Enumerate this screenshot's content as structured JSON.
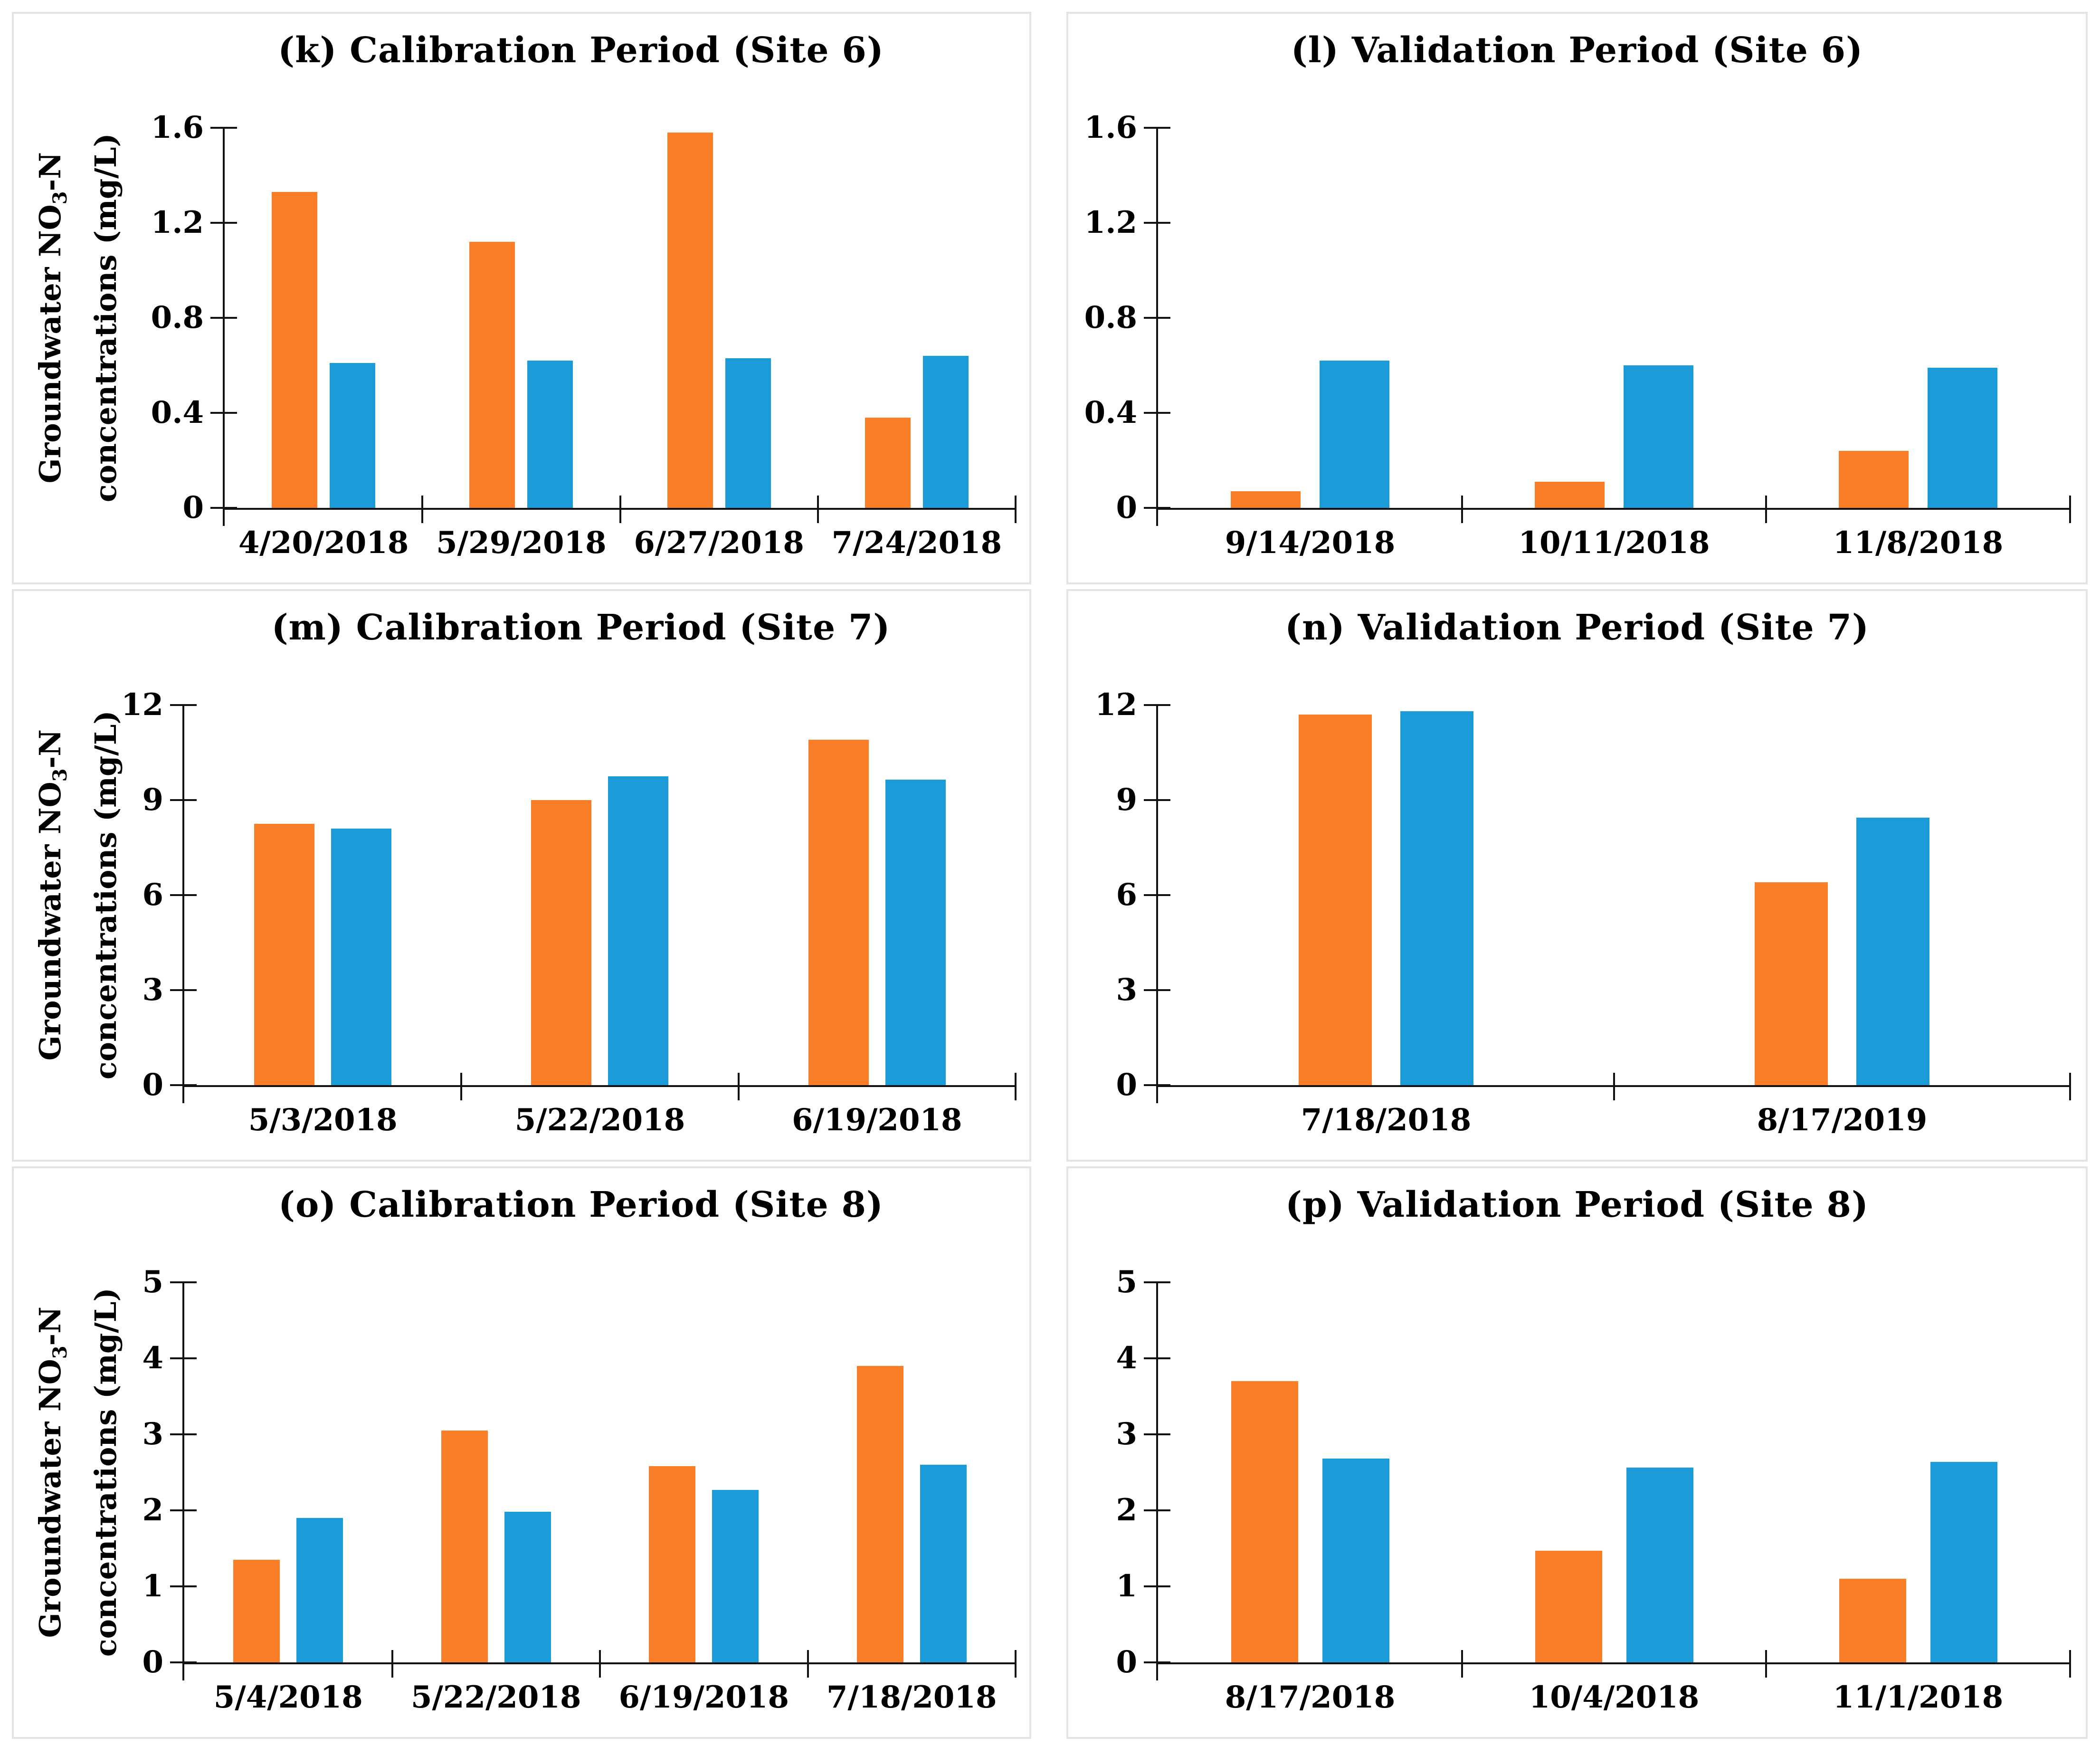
{
  "figure": {
    "colors": {
      "orange": "#F97E27",
      "blue": "#1B9CD8",
      "axis": "#111111",
      "panel_border": "#E3E3E3"
    },
    "ylabel": {
      "pre": "Groundwater NO",
      "sub": "3",
      "post": "-N",
      "line2": "concentrations (mg/L)"
    }
  },
  "chart_data": [
    {
      "id": "k",
      "type": "bar",
      "title": "(k) Calibration Period (Site 6)",
      "categories": [
        "4/20/2018",
        "5/29/2018",
        "6/27/2018",
        "7/24/2018"
      ],
      "series": [
        {
          "name": "orange",
          "color": "#F97E27",
          "values": [
            1.33,
            1.12,
            1.58,
            0.38
          ]
        },
        {
          "name": "blue",
          "color": "#1B9CD8",
          "values": [
            0.61,
            0.62,
            0.63,
            0.64
          ]
        }
      ],
      "ylabel": "Groundwater NO3-N concentrations (mg/L)",
      "ylim": [
        0,
        1.6
      ],
      "yticks": [
        0,
        0.4,
        0.8,
        1.2,
        1.6
      ],
      "ytick_labels": [
        "0",
        "0.4",
        "0.8",
        "1.2",
        "1.6"
      ],
      "grid": false,
      "legend": "none",
      "layout": {
        "axis_left": 440,
        "bar_frac": 0.23,
        "gap_frac": 0.063,
        "title_indent": 250,
        "has_ylabel": true
      }
    },
    {
      "id": "l",
      "type": "bar",
      "title": "(l) Validation Period (Site 6)",
      "categories": [
        "9/14/2018",
        "10/11/2018",
        "11/8/2018"
      ],
      "series": [
        {
          "name": "orange",
          "color": "#F97E27",
          "values": [
            0.07,
            0.11,
            0.24
          ]
        },
        {
          "name": "blue",
          "color": "#1B9CD8",
          "values": [
            0.62,
            0.6,
            0.59
          ]
        }
      ],
      "ylabel": "",
      "ylim": [
        0,
        1.6
      ],
      "yticks": [
        0,
        0.4,
        0.8,
        1.2,
        1.6
      ],
      "ytick_labels": [
        "0",
        "0.4",
        "0.8",
        "1.2",
        "1.6"
      ],
      "grid": false,
      "legend": "none",
      "layout": {
        "axis_left": 185,
        "bar_frac": 0.23,
        "gap_frac": 0.063,
        "title_indent": 0,
        "has_ylabel": false
      }
    },
    {
      "id": "m",
      "type": "bar",
      "title": "(m) Calibration Period (Site 7)",
      "categories": [
        "5/3/2018",
        "5/22/2018",
        "6/19/2018"
      ],
      "series": [
        {
          "name": "orange",
          "color": "#F97E27",
          "values": [
            8.25,
            9.0,
            10.9
          ]
        },
        {
          "name": "blue",
          "color": "#1B9CD8",
          "values": [
            8.1,
            9.75,
            9.65
          ]
        }
      ],
      "ylabel": "Groundwater NO3-N concentrations (mg/L)",
      "ylim": [
        0,
        12
      ],
      "yticks": [
        0,
        3,
        6,
        9,
        12
      ],
      "ytick_labels": [
        "0",
        "3",
        "6",
        "9",
        "12"
      ],
      "grid": false,
      "legend": "none",
      "layout": {
        "axis_left": 355,
        "bar_frac": 0.217,
        "gap_frac": 0.06,
        "title_indent": 250,
        "has_ylabel": true
      }
    },
    {
      "id": "n",
      "type": "bar",
      "title": "(n) Validation Period (Site 7)",
      "categories": [
        "7/18/2018",
        "8/17/2019"
      ],
      "series": [
        {
          "name": "orange",
          "color": "#F97E27",
          "values": [
            11.7,
            6.4
          ]
        },
        {
          "name": "blue",
          "color": "#1B9CD8",
          "values": [
            11.8,
            8.45
          ]
        }
      ],
      "ylabel": "",
      "ylim": [
        0,
        12
      ],
      "yticks": [
        0,
        3,
        6,
        9,
        12
      ],
      "ytick_labels": [
        "0",
        "3",
        "6",
        "9",
        "12"
      ],
      "grid": false,
      "legend": "none",
      "layout": {
        "axis_left": 185,
        "bar_frac": 0.16,
        "gap_frac": 0.062,
        "title_indent": 0,
        "has_ylabel": false
      }
    },
    {
      "id": "o",
      "type": "bar",
      "title": "(o) Calibration Period (Site 8)",
      "categories": [
        "5/4/2018",
        "5/22/2018",
        "6/19/2018",
        "7/18/2018"
      ],
      "series": [
        {
          "name": "orange",
          "color": "#F97E27",
          "values": [
            1.35,
            3.05,
            2.58,
            3.9
          ]
        },
        {
          "name": "blue",
          "color": "#1B9CD8",
          "values": [
            1.9,
            1.98,
            2.27,
            2.6
          ]
        }
      ],
      "ylabel": "Groundwater NO3-N concentrations (mg/L)",
      "ylim": [
        0,
        5
      ],
      "yticks": [
        0,
        1,
        2,
        3,
        4,
        5
      ],
      "ytick_labels": [
        "0",
        "1",
        "2",
        "3",
        "4",
        "5"
      ],
      "grid": false,
      "legend": "none",
      "layout": {
        "axis_left": 355,
        "bar_frac": 0.225,
        "gap_frac": 0.08,
        "title_indent": 250,
        "has_ylabel": true
      }
    },
    {
      "id": "p",
      "type": "bar",
      "title": "(p) Validation Period (Site 8)",
      "categories": [
        "8/17/2018",
        "10/4/2018",
        "11/1/2018"
      ],
      "series": [
        {
          "name": "orange",
          "color": "#F97E27",
          "values": [
            3.7,
            1.47,
            1.1
          ]
        },
        {
          "name": "blue",
          "color": "#1B9CD8",
          "values": [
            2.68,
            2.56,
            2.64
          ]
        }
      ],
      "ylabel": "",
      "ylim": [
        0,
        5
      ],
      "yticks": [
        0,
        1,
        2,
        3,
        4,
        5
      ],
      "ytick_labels": [
        "0",
        "1",
        "2",
        "3",
        "4",
        "5"
      ],
      "grid": false,
      "legend": "none",
      "layout": {
        "axis_left": 185,
        "bar_frac": 0.22,
        "gap_frac": 0.08,
        "title_indent": 0,
        "has_ylabel": false
      }
    }
  ]
}
